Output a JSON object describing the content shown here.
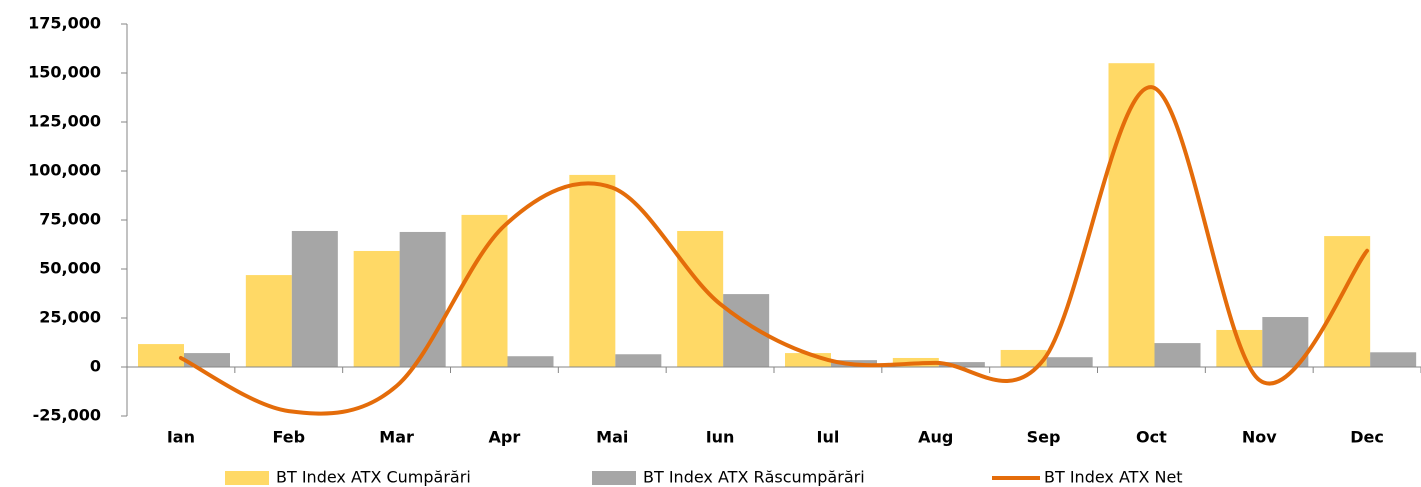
{
  "chart_data": {
    "type": "bar_line",
    "categories": [
      "Ian",
      "Feb",
      "Mar",
      "Apr",
      "Mai",
      "Iun",
      "Iul",
      "Aug",
      "Sep",
      "Oct",
      "Nov",
      "Dec"
    ],
    "series": [
      {
        "name": "BT Index ATX Cumpărări",
        "color": "#ffd966",
        "type": "bar",
        "values": [
          11700,
          46900,
          59200,
          77600,
          98000,
          69400,
          7100,
          4600,
          8700,
          155000,
          18900,
          66800
        ]
      },
      {
        "name": "BT Index ATX Răscumpărări",
        "color": "#a6a6a6",
        "type": "bar",
        "values": [
          7100,
          69400,
          68900,
          5500,
          6500,
          37200,
          3500,
          2500,
          5000,
          12200,
          25500,
          7500
        ]
      },
      {
        "name": "BT Index ATX Net",
        "color": "#e46c0a",
        "type": "line",
        "values": [
          4600,
          -22500,
          -9700,
          72100,
          91500,
          32200,
          3600,
          2100,
          3700,
          142800,
          -6600,
          59300
        ]
      }
    ],
    "ylim": [
      -25000,
      175000
    ],
    "yticks": [
      {
        "value": -25000,
        "label": "-25,000"
      },
      0,
      {
        "value": 25000,
        "label": "25,000"
      },
      {
        "value": 50000,
        "label": "50,000"
      },
      {
        "value": 75000,
        "label": "75,000"
      },
      {
        "value": 100000,
        "label": "100,000"
      },
      {
        "value": 125000,
        "label": "125,000"
      },
      {
        "value": 150000,
        "label": "150,000"
      },
      {
        "value": 175000,
        "label": "175,000"
      }
    ],
    "negative_tick_color": "#ff0000",
    "grid": false,
    "legend": "bottom"
  }
}
